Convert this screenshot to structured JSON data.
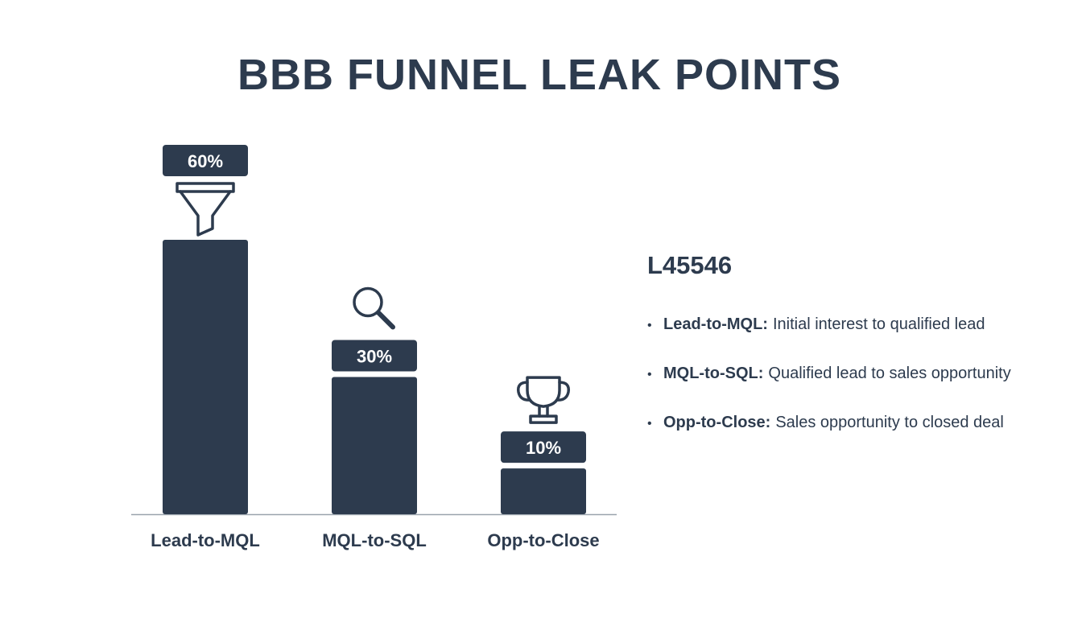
{
  "chart_data": {
    "type": "bar",
    "title": "BBB FUNNEL LEAK POINTS",
    "categories": [
      "Lead-to-MQL",
      "MQL-to-SQL",
      "Opp-to-Close"
    ],
    "values": [
      60,
      30,
      10
    ],
    "data_labels": [
      "60%",
      "30%",
      "10%"
    ],
    "icons": [
      "funnel-icon",
      "magnifier-icon",
      "trophy-icon"
    ],
    "ylim": [
      0,
      60
    ],
    "grid": false,
    "bar_color": "#2d3b4e"
  },
  "legend": {
    "title": "L45546",
    "items": [
      {
        "term": "Lead-to-MQL:",
        "desc": "Initial interest to qualified lead"
      },
      {
        "term": "MQL-to-SQL:",
        "desc": "Qualified lead to sales opportunity"
      },
      {
        "term": "Opp-to-Close:",
        "desc": "Sales opportunity to closed deal"
      }
    ]
  }
}
